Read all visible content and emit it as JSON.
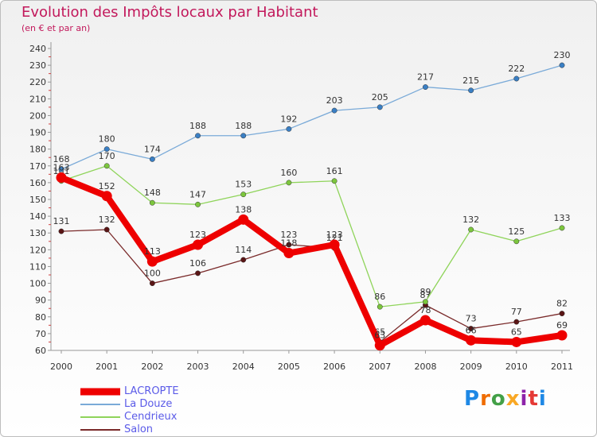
{
  "chart_data": {
    "type": "line",
    "title": "Evolution des Impôts locaux par Habitant",
    "subtitle": "(en € et par an)",
    "x": [
      "2000",
      "2001",
      "2002",
      "2003",
      "2004",
      "2005",
      "2006",
      "2007",
      "2008",
      "2009",
      "2010",
      "2011"
    ],
    "ylim": [
      60,
      240
    ],
    "yticks": [
      "60",
      "70",
      "80",
      "90",
      "100",
      "110",
      "120",
      "130",
      "140",
      "150",
      "160",
      "170",
      "180",
      "190",
      "200",
      "210",
      "220",
      "230",
      "240"
    ],
    "grid": false,
    "legend_position": "bottom-left",
    "series": [
      {
        "name": "Salon",
        "color": "#7a2a2a",
        "values": [
          131,
          132,
          100,
          106,
          114,
          123,
          121,
          65,
          87,
          73,
          77,
          82
        ],
        "labels": [
          "131",
          "132",
          "100",
          "106",
          "114",
          "123",
          "121",
          "65",
          "87",
          "73",
          "77",
          "82"
        ]
      },
      {
        "name": "Cendrieux",
        "color": "#8fd45a",
        "values": [
          161,
          170,
          148,
          147,
          153,
          160,
          161,
          86,
          89,
          132,
          125,
          133
        ],
        "labels": [
          "161",
          "170",
          "148",
          "147",
          "153",
          "160",
          "161",
          "86",
          "89",
          "132",
          "125",
          "133"
        ]
      },
      {
        "name": "La Douze",
        "color": "#7aaad8",
        "values": [
          168,
          180,
          174,
          188,
          188,
          192,
          203,
          205,
          217,
          215,
          222,
          230
        ],
        "labels": [
          "168",
          "180",
          "174",
          "188",
          "188",
          "192",
          "203",
          "205",
          "217",
          "215",
          "222",
          "230"
        ]
      },
      {
        "name": "LACROPTE",
        "color": "#ee0000",
        "values": [
          163,
          152,
          113,
          123,
          138,
          118,
          123,
          63,
          78,
          66,
          65,
          69
        ],
        "labels": [
          "163",
          "152",
          "113",
          "123",
          "138",
          "118",
          "123",
          "63",
          "78",
          "66",
          "65",
          "69"
        ]
      }
    ],
    "legend": [
      "LACROPTE",
      "La Douze",
      "Cendrieux",
      "Salon"
    ]
  },
  "logo": {
    "letters": [
      "P",
      "r",
      "o",
      "x",
      "i",
      "t",
      "i"
    ],
    "colors": [
      "#1e88e5",
      "#ef6c00",
      "#43a047",
      "#fdd835",
      "#8e24aa",
      "#e53935",
      "#1e88e5"
    ]
  }
}
